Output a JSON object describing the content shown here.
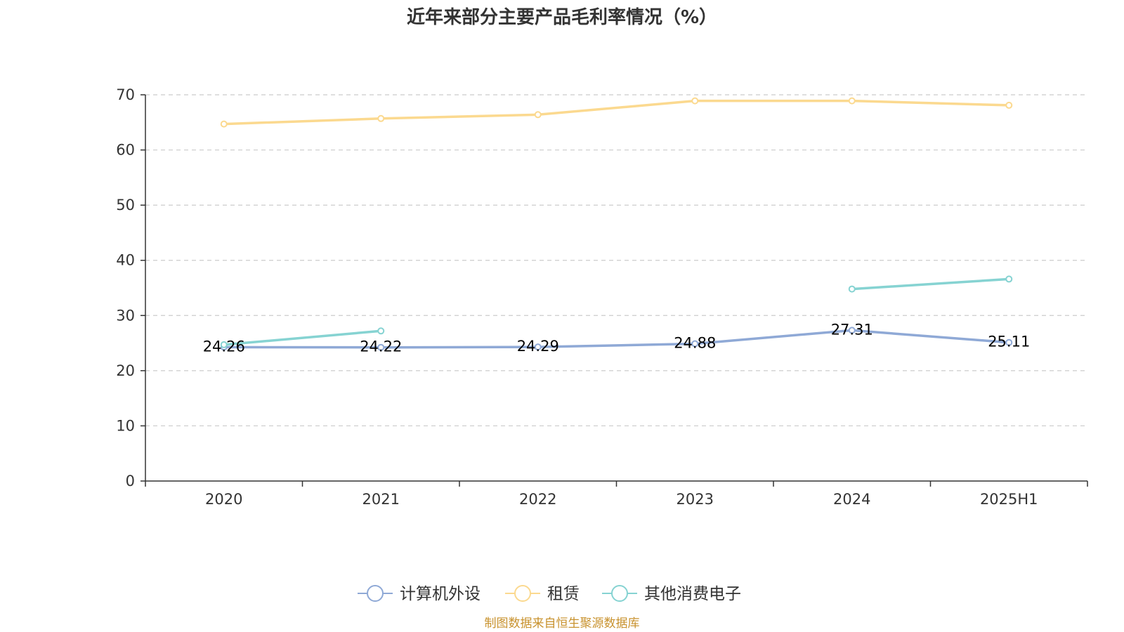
{
  "chart_data": {
    "type": "line",
    "title": "近年来部分主要产品毛利率情况（%）",
    "categories": [
      "2020",
      "2021",
      "2022",
      "2023",
      "2024",
      "2025H1"
    ],
    "yticks": [
      "0",
      "10",
      "20",
      "30",
      "40",
      "50",
      "60",
      "70"
    ],
    "ylim": [
      0,
      70
    ],
    "grid": true,
    "legend_position": "bottom",
    "series": [
      {
        "name": "计算机外设",
        "color": "#8fa9d6",
        "values": [
          24.26,
          24.22,
          24.29,
          24.88,
          27.31,
          25.11
        ],
        "labels": [
          "24.26",
          "24.22",
          "24.29",
          "24.88",
          "27.31",
          "25.11"
        ]
      },
      {
        "name": "租赁",
        "color": "#fbd98f",
        "values": [
          64.7,
          65.7,
          66.4,
          68.9,
          68.9,
          68.1
        ]
      },
      {
        "name": "其他消费电子",
        "color": "#86d3d2",
        "values": [
          24.7,
          27.2,
          null,
          null,
          34.8,
          36.6
        ]
      }
    ]
  },
  "footer": {
    "source": "制图数据来自恒生聚源数据库"
  }
}
